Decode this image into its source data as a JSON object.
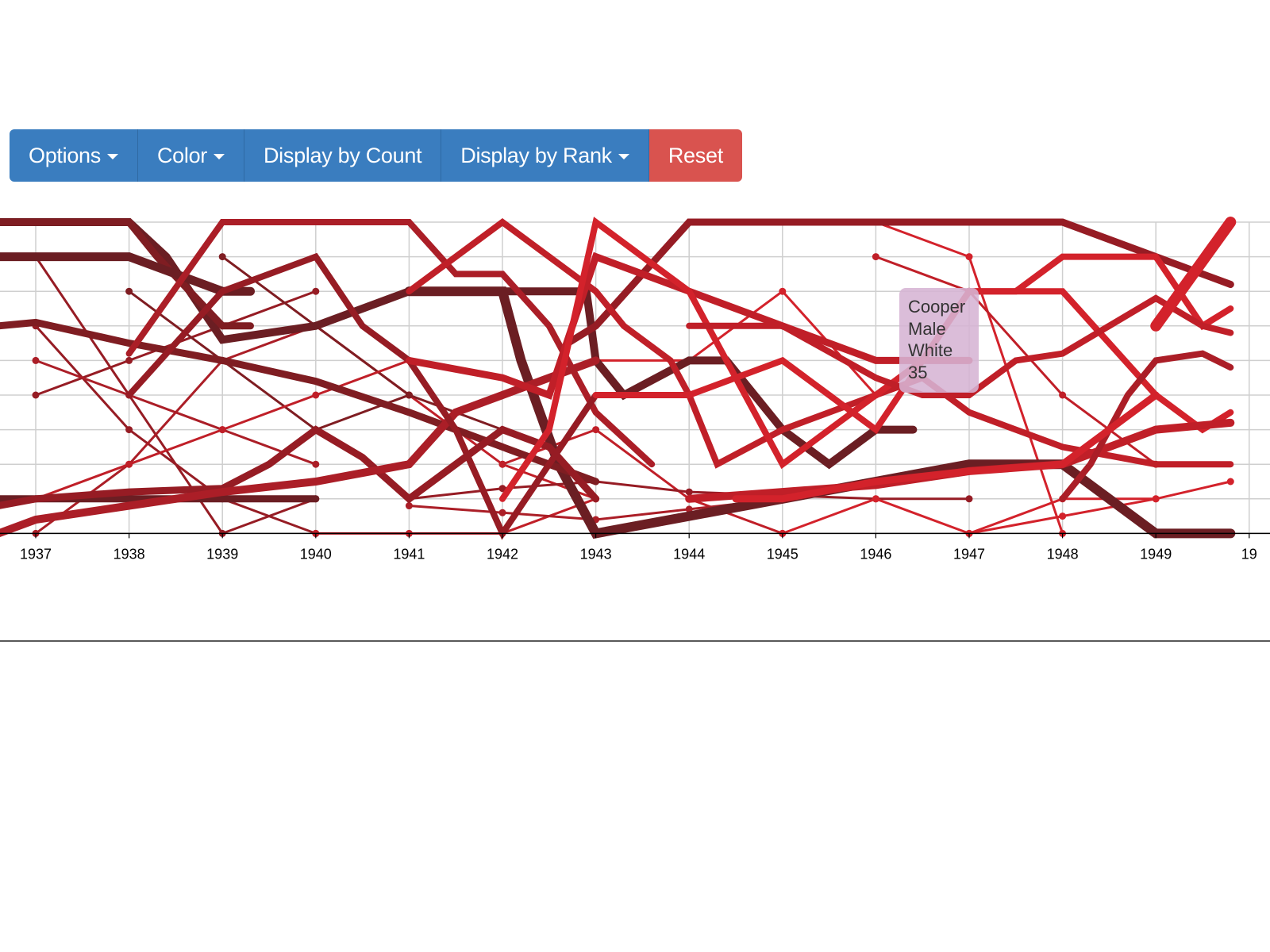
{
  "toolbar": {
    "options_label": "Options",
    "color_label": "Color",
    "count_label": "Display by Count",
    "rank_label": "Display by Rank",
    "reset_label": "Reset",
    "primary_color": "#3a7dbf",
    "danger_color": "#d9534f"
  },
  "tooltip": {
    "name": "Cooper",
    "gender": "Male",
    "race": "White",
    "value": "35"
  },
  "chart_data": {
    "type": "line",
    "title": "",
    "xlabel": "",
    "ylabel": "",
    "y_axis": "rank",
    "ylim": [
      1,
      10
    ],
    "grid": true,
    "x": [
      1937,
      1938,
      1939,
      1940,
      1941,
      1942,
      1943,
      1944,
      1945,
      1946,
      1947,
      1948,
      1949
    ],
    "x_ticks": [
      "1937",
      "1938",
      "1939",
      "1940",
      "1941",
      "1942",
      "1943",
      "1944",
      "1945",
      "1946",
      "1947",
      "1948",
      "1949",
      "19"
    ],
    "colors": [
      "#6b1e23",
      "#7f1d22",
      "#961c24",
      "#ab1e27",
      "#c01f28",
      "#d3222b"
    ],
    "series": [
      {
        "color": 0,
        "width": 10,
        "points": [
          [
            1936.6,
            1
          ],
          [
            1938,
            1
          ],
          [
            1938.4,
            2
          ],
          [
            1939,
            4.4
          ],
          [
            1940,
            4
          ],
          [
            1941,
            3
          ],
          [
            1942,
            3
          ],
          [
            1942.9,
            3
          ],
          [
            1943,
            5
          ],
          [
            1943.3,
            6
          ],
          [
            1944,
            5
          ],
          [
            1944.4,
            5
          ],
          [
            1945,
            7
          ],
          [
            1945.5,
            8
          ],
          [
            1946,
            7
          ],
          [
            1946.4,
            7
          ]
        ]
      },
      {
        "color": 1,
        "width": 9,
        "points": [
          [
            1936.6,
            1
          ],
          [
            1937,
            1
          ],
          [
            1938,
            1
          ],
          [
            1938.3,
            2
          ],
          [
            1939,
            4
          ],
          [
            1939.3,
            4
          ]
        ]
      },
      {
        "color": 0,
        "width": 11,
        "points": [
          [
            1936.6,
            2
          ],
          [
            1937,
            2
          ],
          [
            1938,
            2
          ],
          [
            1938.5,
            2.5
          ],
          [
            1939,
            3
          ],
          [
            1939.3,
            3
          ]
        ]
      },
      {
        "color": 0,
        "width": 12,
        "points": [
          [
            1941,
            3
          ],
          [
            1942,
            3
          ],
          [
            1942.2,
            5
          ],
          [
            1942.6,
            8
          ],
          [
            1943,
            10
          ],
          [
            1944,
            9.5
          ],
          [
            1945,
            9
          ],
          [
            1946,
            8.5
          ],
          [
            1947,
            8
          ],
          [
            1948,
            8
          ],
          [
            1949,
            10
          ],
          [
            1949.8,
            10
          ]
        ]
      },
      {
        "color": 1,
        "width": 9,
        "points": [
          [
            1936.6,
            4
          ],
          [
            1937,
            3.9
          ],
          [
            1938,
            4.5
          ],
          [
            1939,
            5
          ],
          [
            1940,
            5.6
          ],
          [
            1941,
            6.5
          ],
          [
            1942,
            7.5
          ],
          [
            1943,
            8.5
          ]
        ]
      },
      {
        "color": 0,
        "width": 9,
        "points": [
          [
            1936.6,
            9
          ],
          [
            1938,
            9
          ],
          [
            1939,
            9
          ],
          [
            1940,
            9
          ]
        ]
      },
      {
        "color": 2,
        "width": 9,
        "points": [
          [
            1942.7,
            4.5
          ],
          [
            1943,
            4
          ],
          [
            1944,
            1
          ],
          [
            1948,
            1
          ],
          [
            1949,
            2
          ],
          [
            1949.8,
            2.8
          ]
        ]
      },
      {
        "color": 2,
        "width": 9,
        "points": [
          [
            1936.6,
            9.2
          ],
          [
            1937,
            9
          ],
          [
            1938,
            8.8
          ],
          [
            1939,
            8.7
          ],
          [
            1939.5,
            8
          ],
          [
            1940,
            7
          ],
          [
            1940.5,
            7.8
          ],
          [
            1941,
            9
          ],
          [
            1942,
            7
          ],
          [
            1942.5,
            7.5
          ],
          [
            1943,
            9
          ]
        ]
      },
      {
        "color": 3,
        "width": 10,
        "points": [
          [
            1936.6,
            10
          ],
          [
            1937,
            9.6
          ],
          [
            1938,
            9.2
          ],
          [
            1939,
            8.8
          ],
          [
            1940,
            8.5
          ],
          [
            1941,
            8
          ],
          [
            1941.5,
            6.5
          ],
          [
            1942,
            6
          ],
          [
            1943,
            5
          ]
        ]
      },
      {
        "color": 3,
        "width": 8,
        "points": [
          [
            1938,
            4.8
          ],
          [
            1939,
            1
          ],
          [
            1941,
            1
          ],
          [
            1941.5,
            2.5
          ],
          [
            1942,
            2.5
          ],
          [
            1942.5,
            4
          ],
          [
            1943,
            6.5
          ],
          [
            1943.6,
            8
          ]
        ]
      },
      {
        "color": 2,
        "width": 8,
        "points": [
          [
            1938,
            6
          ],
          [
            1939,
            3
          ],
          [
            1940,
            2
          ],
          [
            1940.5,
            4
          ],
          [
            1941,
            5
          ],
          [
            1941.5,
            7
          ],
          [
            1942,
            10
          ],
          [
            1942.5,
            8
          ],
          [
            1943,
            6
          ]
        ]
      },
      {
        "color": 4,
        "width": 8,
        "points": [
          [
            1941,
            3
          ],
          [
            1941.5,
            2
          ],
          [
            1942,
            1
          ],
          [
            1943,
            3
          ],
          [
            1943.3,
            4
          ],
          [
            1943.8,
            5
          ],
          [
            1944,
            6
          ],
          [
            1944.3,
            8
          ],
          [
            1945,
            7
          ],
          [
            1946,
            6
          ],
          [
            1946.5,
            5.5
          ],
          [
            1947,
            6.5
          ],
          [
            1948,
            7.5
          ],
          [
            1949,
            8
          ],
          [
            1949.8,
            8
          ]
        ]
      },
      {
        "color": 4,
        "width": 9,
        "points": [
          [
            1941,
            5
          ],
          [
            1942,
            5.5
          ],
          [
            1942.5,
            6
          ],
          [
            1943,
            2
          ],
          [
            1944,
            3
          ],
          [
            1945,
            4
          ],
          [
            1946,
            5
          ],
          [
            1947,
            5
          ]
        ]
      },
      {
        "color": 5,
        "width": 8,
        "points": [
          [
            1942,
            9
          ],
          [
            1942.5,
            7
          ],
          [
            1943,
            1
          ],
          [
            1944,
            3
          ],
          [
            1945,
            8
          ],
          [
            1946,
            6
          ],
          [
            1946.5,
            5
          ],
          [
            1947,
            3
          ],
          [
            1948,
            3
          ],
          [
            1949,
            6
          ],
          [
            1949.5,
            7
          ],
          [
            1949.8,
            6.5
          ]
        ]
      },
      {
        "color": 5,
        "width": 8,
        "points": [
          [
            1943,
            6
          ],
          [
            1944,
            6
          ],
          [
            1945,
            5
          ],
          [
            1945.5,
            6
          ],
          [
            1946,
            7
          ],
          [
            1947,
            3
          ],
          [
            1947.5,
            3
          ],
          [
            1948,
            2
          ],
          [
            1949,
            2
          ],
          [
            1949.5,
            4
          ],
          [
            1949.8,
            3.5
          ]
        ]
      },
      {
        "color": 4,
        "width": 8,
        "points": [
          [
            1944,
            4
          ],
          [
            1944.5,
            4
          ],
          [
            1945,
            4
          ],
          [
            1946,
            5.5
          ],
          [
            1946.5,
            6
          ],
          [
            1947,
            6
          ],
          [
            1947.5,
            5
          ],
          [
            1948,
            4.8
          ],
          [
            1949,
            3.2
          ],
          [
            1949.5,
            4
          ],
          [
            1949.8,
            4.2
          ]
        ]
      },
      {
        "color": 4,
        "width": 10,
        "points": [
          [
            1944,
            9
          ],
          [
            1945,
            8.8
          ],
          [
            1946,
            8.6
          ],
          [
            1947,
            8.2
          ],
          [
            1948,
            8
          ],
          [
            1949,
            7
          ],
          [
            1949.8,
            6.8
          ]
        ]
      },
      {
        "color": 5,
        "width": 14,
        "points": [
          [
            1949,
            4
          ],
          [
            1949.8,
            1
          ]
        ]
      },
      {
        "color": 3,
        "width": 8,
        "points": [
          [
            1948,
            9
          ],
          [
            1948.3,
            8
          ],
          [
            1948.7,
            6
          ],
          [
            1949,
            5
          ],
          [
            1949.5,
            4.8
          ],
          [
            1949.8,
            5.2
          ]
        ]
      },
      {
        "color": 5,
        "width": 9,
        "points": [
          [
            1944.5,
            9
          ],
          [
            1945,
            9
          ],
          [
            1946,
            8.5
          ],
          [
            1947,
            8.2
          ],
          [
            1948,
            8
          ],
          [
            1948.5,
            7
          ],
          [
            1949,
            6
          ]
        ]
      }
    ],
    "thin_series": [
      {
        "color": 2,
        "points": [
          [
            1937,
            6
          ],
          [
            1938,
            5
          ],
          [
            1939,
            4
          ],
          [
            1940,
            3
          ]
        ]
      },
      {
        "color": 2,
        "points": [
          [
            1937,
            4
          ],
          [
            1938,
            7
          ],
          [
            1939,
            9
          ],
          [
            1940,
            10
          ]
        ]
      },
      {
        "color": 3,
        "points": [
          [
            1937,
            5
          ],
          [
            1938,
            6
          ],
          [
            1939,
            7
          ],
          [
            1940,
            8
          ]
        ]
      },
      {
        "color": 1,
        "points": [
          [
            1938,
            3
          ],
          [
            1939,
            5
          ],
          [
            1940,
            7
          ],
          [
            1941,
            6
          ]
        ]
      },
      {
        "color": 2,
        "points": [
          [
            1937,
            2
          ],
          [
            1938,
            6
          ],
          [
            1939,
            10
          ],
          [
            1940,
            9
          ]
        ]
      },
      {
        "color": 3,
        "points": [
          [
            1937,
            10
          ],
          [
            1938,
            8
          ],
          [
            1939,
            5
          ],
          [
            1940,
            4
          ]
        ]
      },
      {
        "color": 4,
        "points": [
          [
            1940,
            4
          ],
          [
            1941,
            6
          ],
          [
            1942,
            8
          ],
          [
            1943,
            9
          ]
        ]
      },
      {
        "color": 4,
        "points": [
          [
            1940,
            10
          ],
          [
            1941,
            10
          ],
          [
            1942,
            10
          ],
          [
            1943,
            9
          ]
        ]
      },
      {
        "color": 1,
        "points": [
          [
            1939,
            2
          ],
          [
            1940,
            4
          ],
          [
            1941,
            6
          ],
          [
            1942,
            7
          ]
        ]
      },
      {
        "color": 5,
        "points": [
          [
            1943,
            5
          ],
          [
            1944,
            5
          ],
          [
            1945,
            3
          ],
          [
            1946,
            6
          ]
        ]
      },
      {
        "color": 4,
        "points": [
          [
            1942,
            8
          ],
          [
            1943,
            7
          ],
          [
            1944,
            9
          ],
          [
            1945,
            10
          ]
        ]
      },
      {
        "color": 5,
        "points": [
          [
            1945,
            1
          ],
          [
            1946,
            1
          ],
          [
            1947,
            2
          ],
          [
            1948,
            10
          ]
        ]
      },
      {
        "color": 4,
        "points": [
          [
            1946,
            2
          ],
          [
            1947,
            3
          ],
          [
            1948,
            6
          ],
          [
            1949,
            8
          ]
        ]
      },
      {
        "color": 2,
        "points": [
          [
            1941,
            9
          ],
          [
            1942,
            8.7
          ],
          [
            1943,
            8.5
          ],
          [
            1944,
            8.8
          ],
          [
            1945,
            8.9
          ],
          [
            1946,
            9
          ],
          [
            1947,
            9
          ]
        ]
      },
      {
        "color": 5,
        "points": [
          [
            1945,
            10
          ],
          [
            1946,
            9
          ],
          [
            1947,
            10
          ],
          [
            1948,
            9
          ],
          [
            1949,
            9
          ]
        ]
      },
      {
        "color": 5,
        "points": [
          [
            1947,
            10
          ],
          [
            1948,
            9.5
          ],
          [
            1949,
            9
          ],
          [
            1949.8,
            8.5
          ]
        ]
      },
      {
        "color": 4,
        "points": [
          [
            1937,
            9
          ],
          [
            1938,
            8
          ],
          [
            1939,
            7
          ],
          [
            1940,
            6
          ],
          [
            1941,
            5
          ]
        ]
      },
      {
        "color": 3,
        "points": [
          [
            1941,
            9.2
          ],
          [
            1942,
            9.4
          ],
          [
            1943,
            9.6
          ],
          [
            1944,
            9.3
          ],
          [
            1945,
            9
          ]
        ]
      }
    ]
  }
}
